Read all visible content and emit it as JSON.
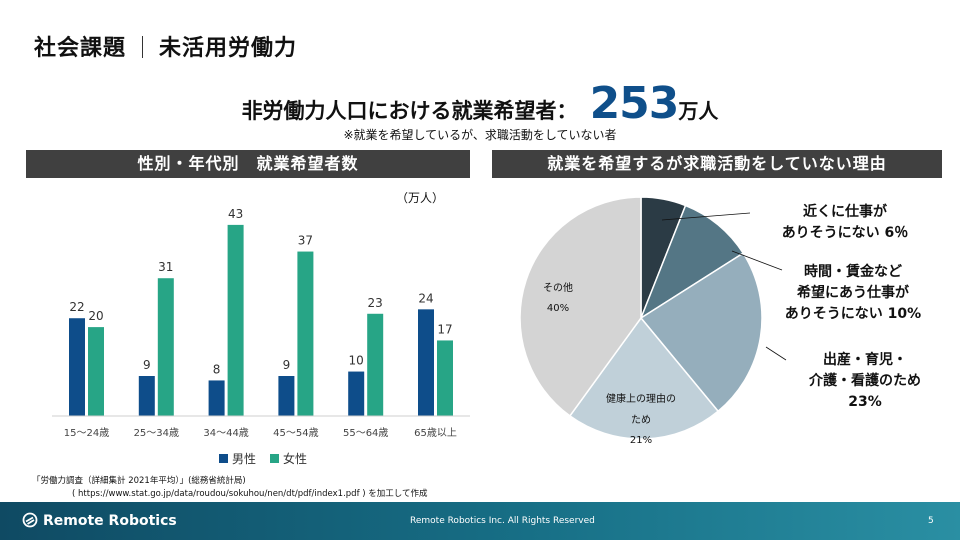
{
  "slide": {
    "title_left": "社会課題",
    "title_right": "未活用労働力",
    "headline": "非労働力人口における就業希望者：",
    "headline_value": "253",
    "headline_unit": "万人",
    "note": "※就業を希望しているが、求職活動をしていない者",
    "left_header": "性別・年代別　就業希望者数",
    "right_header": "就業を希望するが求職活動をしていない理由",
    "source_line1": "「労働力調査（詳細集計 2021年平均）」(総務省統計局)",
    "source_line2": "( https://www.stat.go.jp/data/roudou/sokuhou/nen/dt/pdf/index1.pdf ) を加工して作成",
    "footer_logo": "Remote Robotics",
    "footer_copyright": "Remote Robotics Inc. All Rights Reserved",
    "page_number": "5",
    "colors": {
      "male": "#0e4d8a",
      "female": "#27a586",
      "header_bg": "#404040",
      "accent": "#0f4f8a"
    }
  },
  "chart_data": [
    {
      "type": "bar",
      "title": "性別・年代別　就業希望者数",
      "unit_label": "（万人）",
      "categories": [
        "15〜24歳",
        "25〜34歳",
        "34〜44歳",
        "45〜54歳",
        "55〜64歳",
        "65歳以上"
      ],
      "series": [
        {
          "name": "男性",
          "color": "#0e4d8a",
          "values": [
            22,
            9,
            8,
            9,
            10,
            24
          ]
        },
        {
          "name": "女性",
          "color": "#27a586",
          "values": [
            20,
            31,
            43,
            37,
            23,
            17
          ]
        }
      ],
      "ylim": [
        0,
        45
      ],
      "legend": "bottom"
    },
    {
      "type": "pie",
      "title": "就業を希望するが求職活動をしていない理由",
      "slices": [
        {
          "name": "近くに仕事がありそうにない",
          "value": 6,
          "color": "#2b3b45",
          "label_lines": [
            "近くに仕事が",
            "ありそうにない 6％"
          ]
        },
        {
          "name": "時間・賃金など希望にあう仕事がありそうにない",
          "value": 10,
          "color": "#547685",
          "label_lines": [
            "時間・賃金など",
            "希望にあう仕事が",
            "ありそうにない 10%"
          ]
        },
        {
          "name": "出産・育児・介護・看護のため",
          "value": 23,
          "color": "#95aebc",
          "label_lines": [
            "出産・育児・",
            "介護・看護のため",
            "23%"
          ]
        },
        {
          "name": "健康上の理由のため",
          "value": 21,
          "color": "#c0d0d9",
          "label_lines": [
            "健康上の理由の",
            "ため",
            "21%"
          ]
        },
        {
          "name": "その他",
          "value": 40,
          "color": "#d4d4d4",
          "label_lines": [
            "その他",
            "40%"
          ]
        }
      ]
    }
  ]
}
